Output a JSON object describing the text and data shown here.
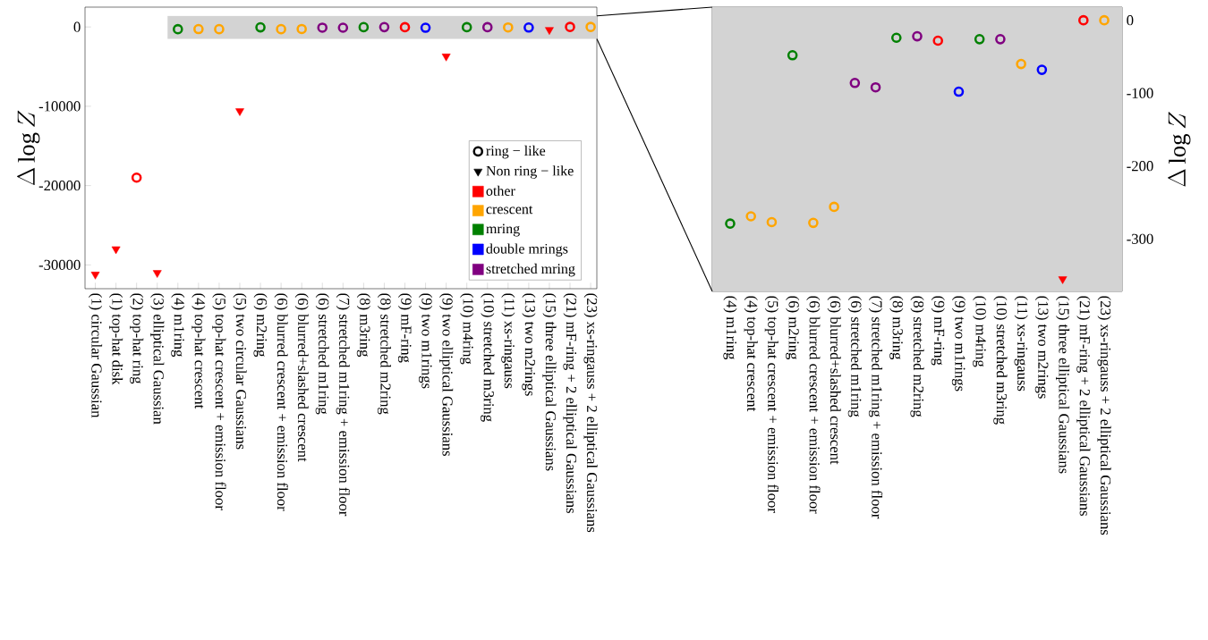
{
  "chart_data": [
    {
      "type": "scatter",
      "ylabel": "\\Delta\\log Z",
      "legend": "bottom right",
      "categories": [
        "(1) circular Gaussian",
        "(1) top-hat disk",
        "(2) top-hat ring",
        "(3) elliptical Gaussian",
        "(4) m1ring",
        "(4) top-hat crescent",
        "(5) top-hat crescent + emission floor",
        "(5) two circular Gaussians",
        "(6) m2ring",
        "(6) blurred crescent + emission floor",
        "(6) blurred+slashed crescent",
        "(6) stretched m1ring",
        "(7) stretched m1ring + emission floor",
        "(8) m3ring",
        "(8) stretched m2ring",
        "(9) mF-ring",
        "(9) two m1rings",
        "(9) two elliptical Gaussians",
        "(10) m4ring",
        "(10) stretched m3ring",
        "(11) xs-ringauss",
        "(13) two m2rings",
        "(15) three elliptical Gaussians",
        "(21) mF-ring + 2 elliptical Gaussians",
        "(23) xs-ringauss + 2 elliptical Gaussians"
      ],
      "ylim": [
        -33000,
        2500
      ],
      "yticks": [
        -30000,
        -20000,
        -10000,
        0
      ],
      "bands": [
        {
          "axis": "y",
          "from": -1500,
          "to": 1400,
          "color": "#d3d3d3"
        }
      ],
      "series": [
        {
          "name": "ring − like",
          "marker": "circle",
          "color": "#000000",
          "values": [
            null,
            null,
            null,
            null,
            null,
            null,
            null,
            null,
            null,
            null,
            null,
            null,
            null,
            null,
            null,
            null,
            null,
            null,
            null,
            null,
            null,
            null,
            null,
            null,
            null
          ]
        },
        {
          "name": "Non ring − like",
          "marker": "triangle",
          "color": "#000000",
          "values": [
            null,
            null,
            null,
            null,
            null,
            null,
            null,
            null,
            null,
            null,
            null,
            null,
            null,
            null,
            null,
            null,
            null,
            null,
            null,
            null,
            null,
            null,
            null,
            null,
            null
          ]
        },
        {
          "name": "other",
          "marker": "circle",
          "color": "#ff0000",
          "values": [
            null,
            null,
            -19000,
            null,
            null,
            null,
            null,
            null,
            null,
            null,
            null,
            null,
            null,
            null,
            null,
            -28,
            null,
            null,
            null,
            null,
            null,
            null,
            null,
            0,
            null
          ]
        },
        {
          "name": "crescent",
          "marker": "circle",
          "color": "#ffa500",
          "values": [
            null,
            null,
            null,
            null,
            null,
            -269,
            -277,
            null,
            null,
            -278,
            -256,
            null,
            null,
            null,
            null,
            null,
            null,
            null,
            null,
            null,
            -60,
            null,
            null,
            null,
            0
          ]
        },
        {
          "name": "mring",
          "marker": "circle",
          "color": "#008000",
          "values": [
            null,
            null,
            null,
            null,
            -279,
            null,
            null,
            null,
            -48,
            null,
            null,
            null,
            null,
            -24,
            null,
            null,
            null,
            null,
            -26,
            null,
            null,
            null,
            null,
            null,
            null
          ]
        },
        {
          "name": "double mrings",
          "marker": "circle",
          "color": "#0000ff",
          "values": [
            null,
            null,
            null,
            null,
            null,
            null,
            null,
            null,
            null,
            null,
            null,
            null,
            null,
            null,
            null,
            null,
            -98,
            null,
            null,
            null,
            null,
            -68,
            null,
            null,
            null
          ]
        },
        {
          "name": "stretched mring",
          "marker": "circle",
          "color": "#800080",
          "values": [
            null,
            null,
            null,
            null,
            null,
            null,
            null,
            null,
            null,
            null,
            null,
            -86,
            -92,
            null,
            -22,
            null,
            null,
            null,
            null,
            -26,
            null,
            null,
            null,
            null,
            null
          ]
        },
        {
          "marker": "triangle",
          "color": "#ff0000",
          "values": [
            -31200,
            -28000,
            null,
            -31000,
            null,
            null,
            null,
            -10600,
            null,
            null,
            null,
            null,
            null,
            null,
            null,
            null,
            null,
            -3700,
            null,
            null,
            null,
            null,
            -355,
            null,
            null
          ]
        }
      ]
    },
    {
      "type": "scatter",
      "y2label": "\\Delta\\log Z",
      "categories": [
        "(4) m1ring",
        "(4) top-hat crescent",
        "(5) top-hat crescent + emission floor",
        "(6) m2ring",
        "(6) blurred crescent + emission floor",
        "(6) blurred+slashed crescent",
        "(6) stretched m1ring",
        "(7) stretched m1ring + emission floor",
        "(8) m3ring",
        "(8) stretched m2ring",
        "(9) mF-ring",
        "(9) two m1rings",
        "(10) m4ring",
        "(10) stretched m3ring",
        "(11) xs-ringauss",
        "(13) two m2rings",
        "(15) three elliptical Gaussians",
        "(21) mF-ring + 2 elliptical Gaussians",
        "(23) xs-ringauss + 2 elliptical Gaussians"
      ],
      "y2lim": [
        -372,
        18
      ],
      "y2ticks": [
        -300,
        -200,
        -100,
        0
      ],
      "bands": [
        {
          "axis": "y2",
          "from": -372,
          "to": 18,
          "color": "#d3d3d3"
        }
      ],
      "series": [
        {
          "marker": "circle",
          "axis": "y2",
          "color": "#000000",
          "values": [
            -279,
            -269,
            -277,
            -48,
            -278,
            -256,
            -86,
            -92,
            -24,
            -22,
            -28,
            -98,
            -26,
            -26,
            -60,
            -68,
            null,
            0,
            0
          ],
          "colors": [
            "#008000",
            "#ffa500",
            "#ffa500",
            "#008000",
            "#ffa500",
            "#ffa500",
            "#800080",
            "#800080",
            "#008000",
            "#800080",
            "#ff0000",
            "#0000ff",
            "#008000",
            "#800080",
            "#ffa500",
            "#0000ff",
            null,
            "#ff0000",
            "#ffa500"
          ]
        },
        {
          "marker": "triangle",
          "axis": "y2",
          "color": "#ff0000",
          "values": [
            null,
            null,
            null,
            null,
            null,
            null,
            null,
            null,
            null,
            null,
            null,
            null,
            null,
            null,
            null,
            null,
            -355,
            null,
            null
          ]
        }
      ]
    }
  ]
}
